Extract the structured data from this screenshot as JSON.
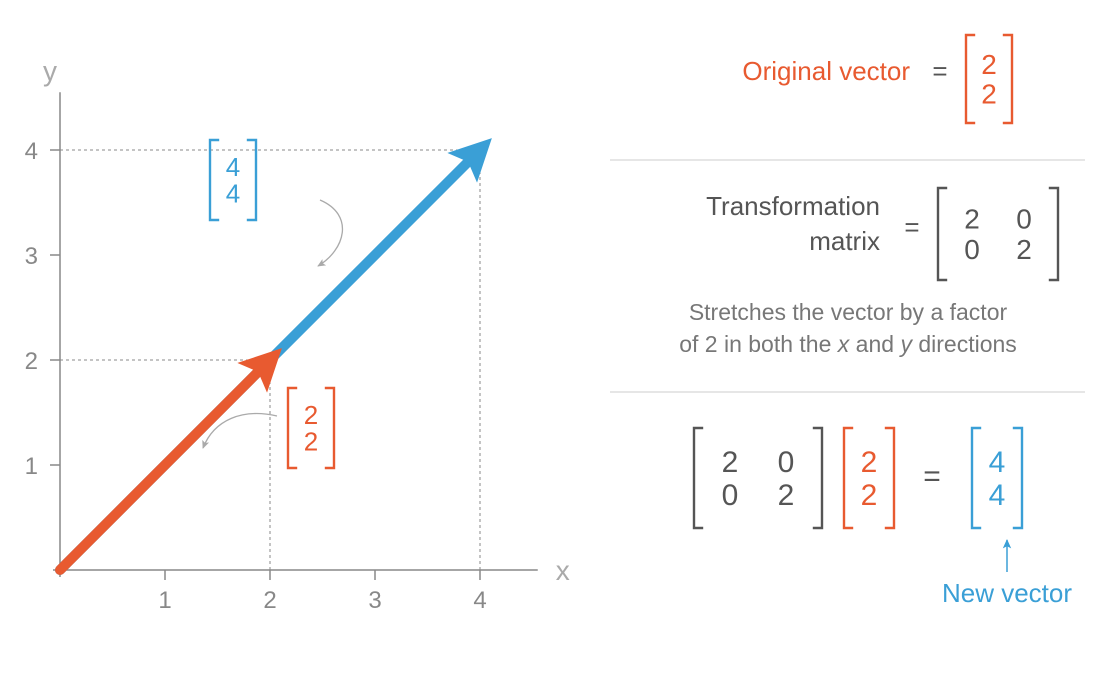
{
  "chart": {
    "type": "vector-plot",
    "background_color": "#ffffff",
    "axis_color": "#888888",
    "grid_dash_color": "#888888",
    "tick_font_size": 24,
    "tick_color": "#888888",
    "axis_label_font_size": 28,
    "axis_label_color": "#aaaaaa",
    "x_label": "x",
    "y_label": "y",
    "xlim": [
      0,
      4.5
    ],
    "ylim": [
      0,
      4.5
    ],
    "x_ticks": [
      1,
      2,
      3,
      4
    ],
    "y_ticks": [
      1,
      2,
      3,
      4
    ],
    "vectors": [
      {
        "name": "transformed",
        "from": [
          0,
          0
        ],
        "to": [
          4,
          4
        ],
        "color": "#3a9fd6",
        "stroke_width": 10,
        "label_values": [
          "4",
          "4"
        ],
        "guide_to_axes": true
      },
      {
        "name": "original",
        "from": [
          0,
          0
        ],
        "to": [
          2,
          2
        ],
        "color": "#e85a30",
        "stroke_width": 10,
        "label_values": [
          "2",
          "2"
        ],
        "guide_to_axes": true
      }
    ]
  },
  "text": {
    "original_label": "Original vector",
    "transformation_label_l1": "Transformation",
    "transformation_label_l2": "matrix",
    "description_l1": "Stretches the vector by a factor",
    "description_l2a": "of 2 in both the ",
    "description_l2b": " and ",
    "description_l2c": " directions",
    "x_sym": "x",
    "y_sym": "y",
    "equals": "=",
    "new_vector": "New vector"
  },
  "matrices": {
    "original_vec": {
      "color": "#e85a30",
      "rows": [
        [
          "2"
        ],
        [
          "2"
        ]
      ]
    },
    "transformed_vec": {
      "color": "#3a9fd6",
      "rows": [
        [
          "4"
        ],
        [
          "4"
        ]
      ]
    },
    "vec22_inline": {
      "color": "#e85a30",
      "rows": [
        [
          "2"
        ],
        [
          "2"
        ]
      ]
    },
    "vec44_chart": {
      "color": "#3a9fd6",
      "rows": [
        [
          "4"
        ],
        [
          "4"
        ]
      ]
    },
    "vec22_chart": {
      "color": "#e85a30",
      "rows": [
        [
          "2"
        ],
        [
          "2"
        ]
      ]
    },
    "transform": {
      "color": "#555555",
      "rows": [
        [
          "2",
          "0"
        ],
        [
          "0",
          "2"
        ]
      ]
    },
    "transform2": {
      "color": "#555555",
      "rows": [
        [
          "2",
          "0"
        ],
        [
          "0",
          "2"
        ]
      ]
    },
    "result_vec": {
      "color": "#3a9fd6",
      "rows": [
        [
          "4"
        ],
        [
          "4"
        ]
      ]
    }
  },
  "colors": {
    "orange": "#e85a30",
    "blue": "#3a9fd6",
    "text_dark": "#555555",
    "text_gray": "#777777",
    "divider": "#cccccc",
    "pointer_gray": "#aaaaaa"
  }
}
